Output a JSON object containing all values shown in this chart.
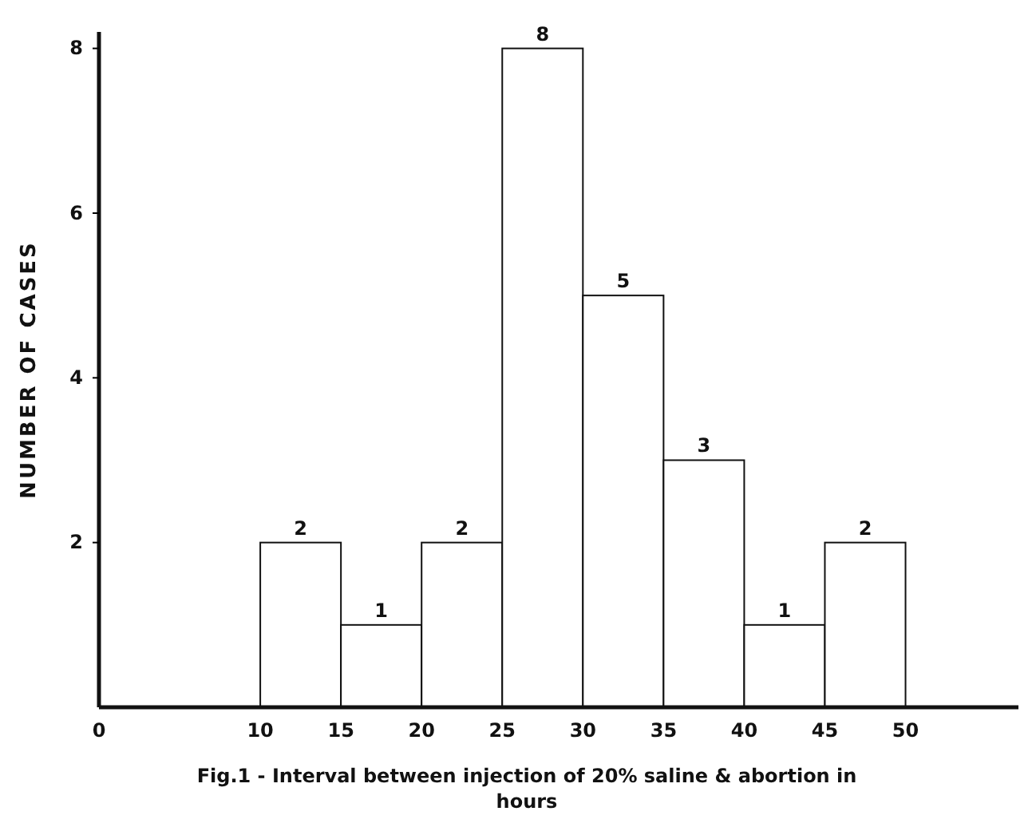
{
  "chart_data": {
    "type": "histogram",
    "title": "Fig.1 - Interval between injection of 20% saline & abortion in hours",
    "ylabel": "NUMBER OF CASES",
    "bins": [
      10,
      15,
      20,
      25,
      30,
      35,
      40,
      45,
      50
    ],
    "values": [
      2,
      1,
      2,
      8,
      5,
      3,
      1,
      2
    ],
    "color": "#ffffff",
    "xlim": [
      0,
      57
    ],
    "xticks": [
      0,
      10,
      15,
      20,
      25,
      30,
      35,
      40,
      45,
      50
    ],
    "ylim": [
      0,
      8.2
    ],
    "yticks": [
      2,
      4,
      6,
      8
    ],
    "data_labels": true,
    "grid": false
  }
}
